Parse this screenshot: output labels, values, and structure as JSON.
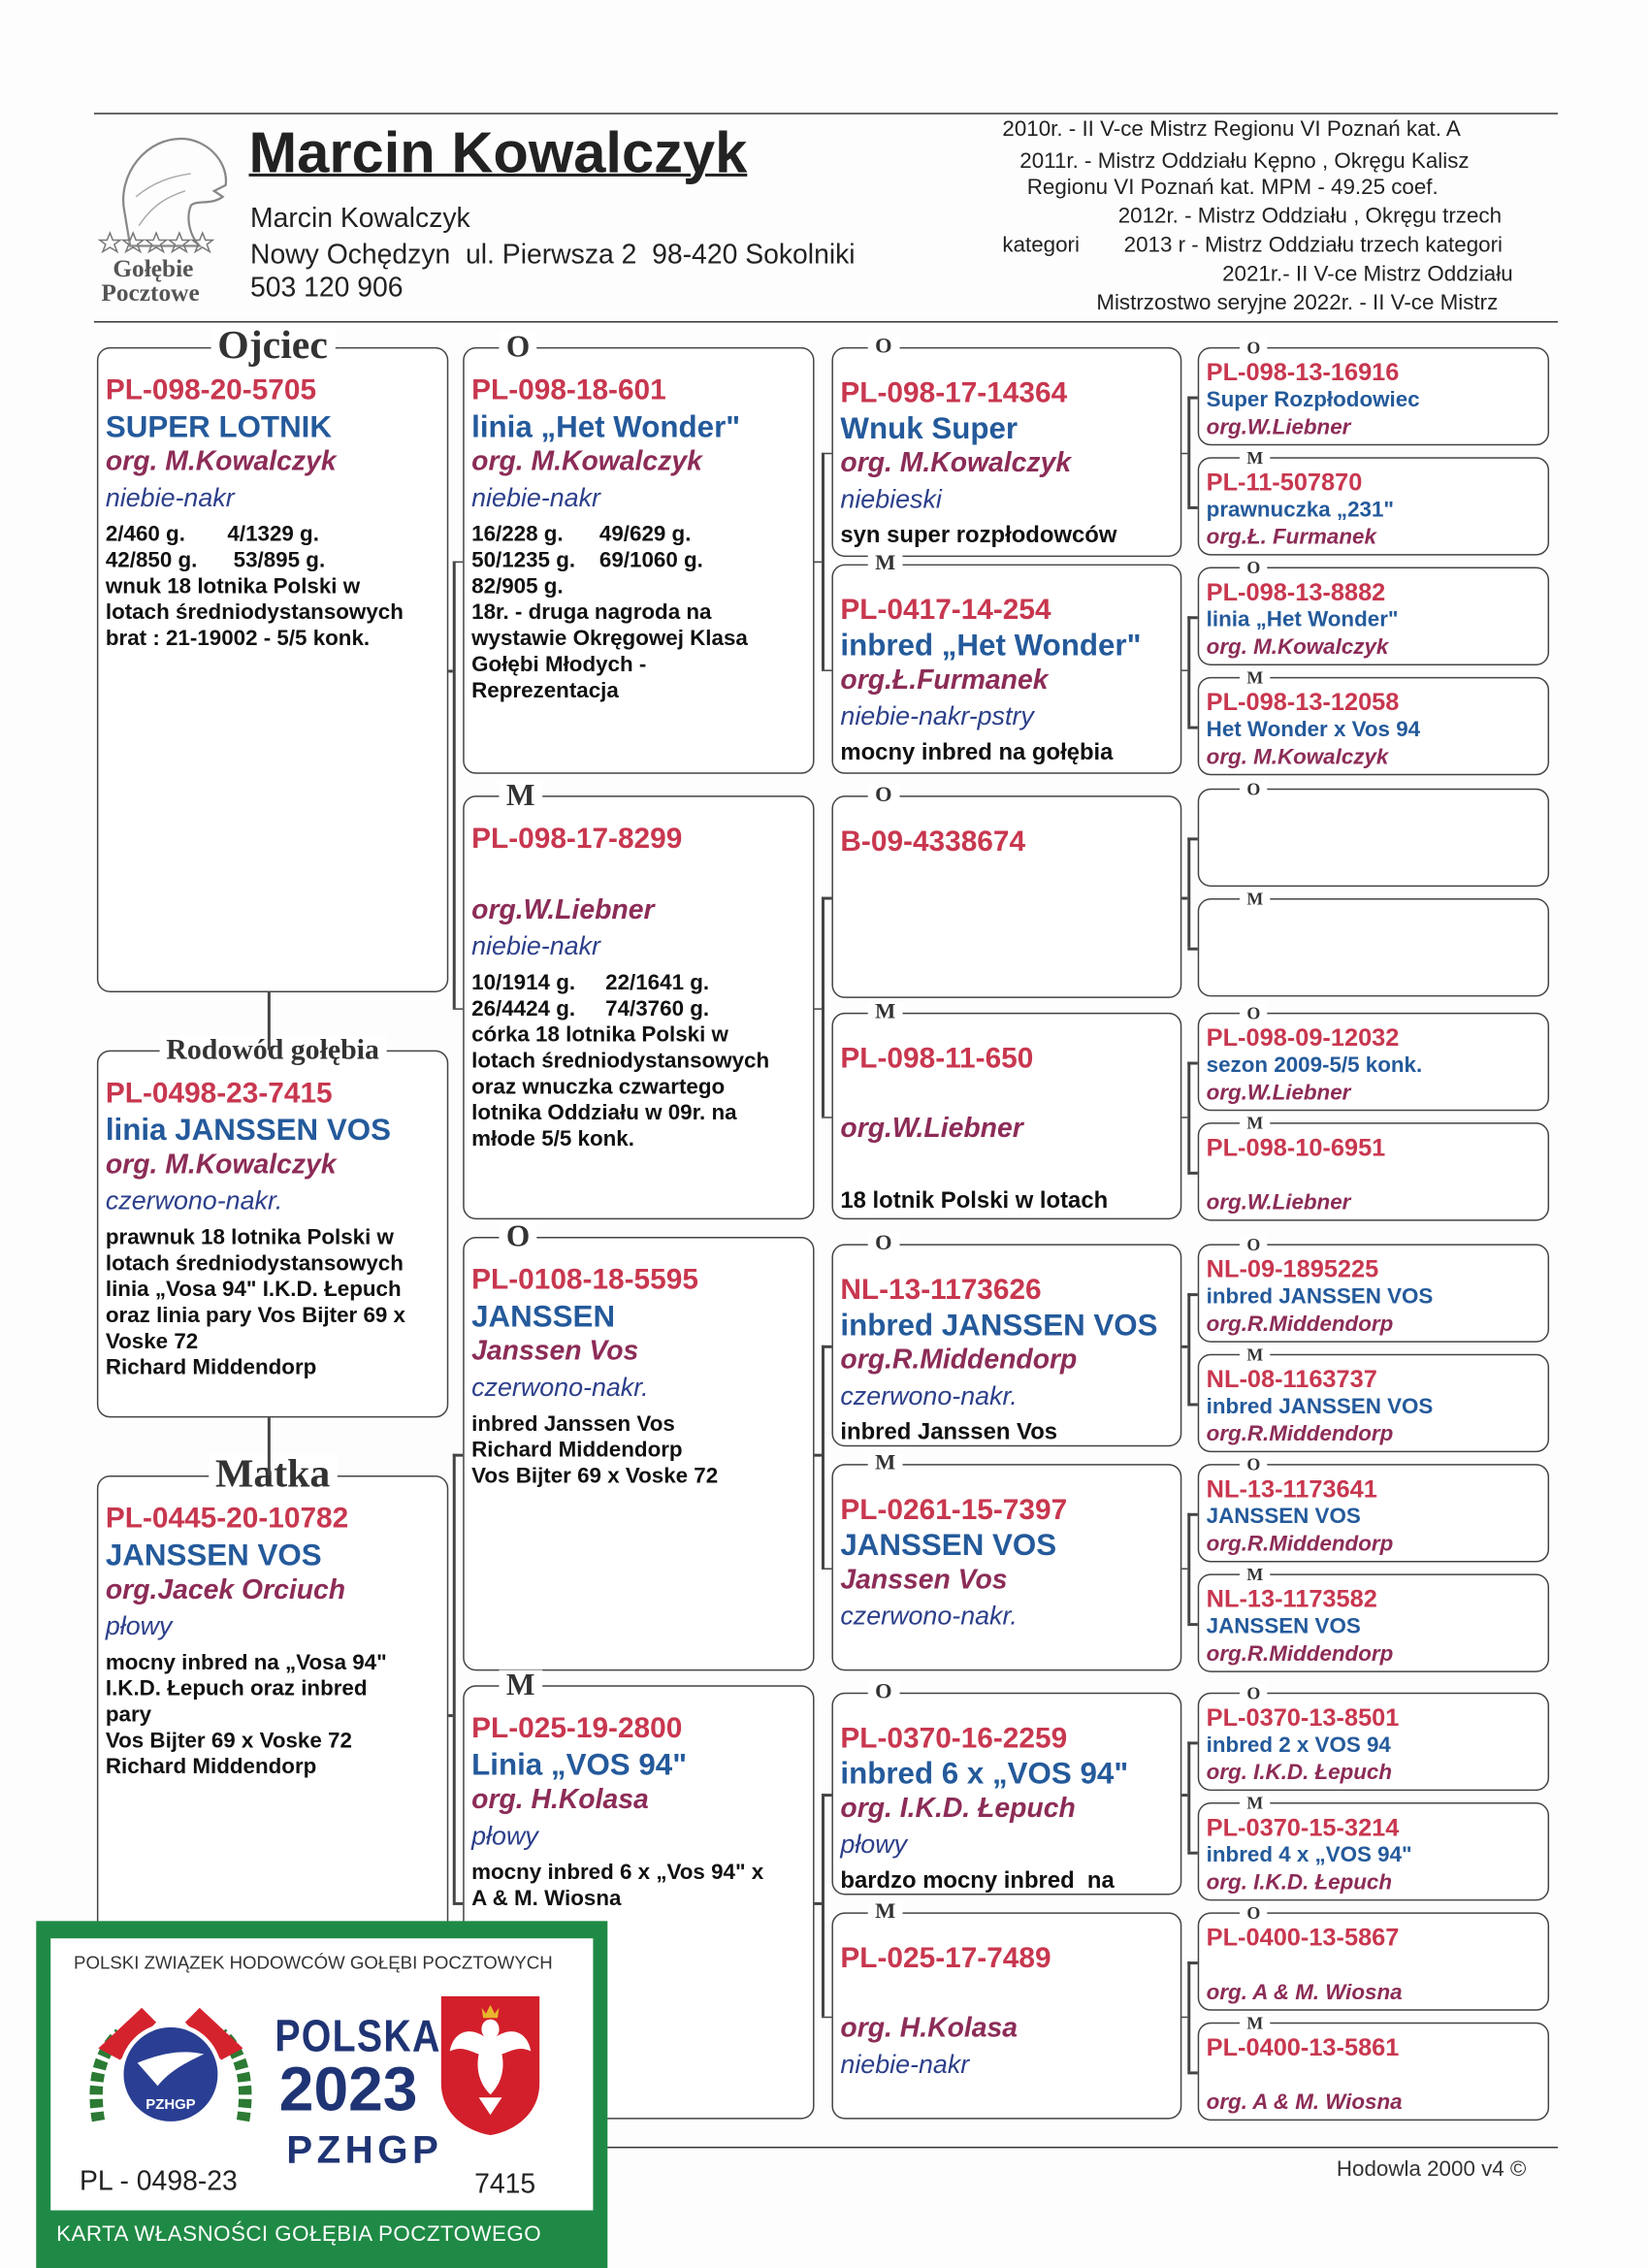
{
  "header": {
    "name": "Marcin Kowalczyk",
    "owner": "Marcin Kowalczyk",
    "address": "Nowy Ochędzyn  ul. Pierwsza 2  98-420 Sokolniki",
    "phone": "503 120 906",
    "logo": [
      "Gołębie",
      "Pocztowe"
    ],
    "achievements": [
      "2010r. - II V-ce Mistrz Regionu VI Poznań kat. A",
      "2011r. - Mistrz Oddziału Kępno , Okręgu Kalisz",
      "Regionu VI Poznań kat. MPM - 49.25 coef.",
      "2012r. - Mistrz Oddziału , Okręgu trzech",
      "kategori",
      "2013 r - Mistrz Oddziału trzech kategori",
      "2021r.- II V-ce Mistrz Oddziału",
      "Mistrzostwo seryjne 2022r. - II V-ce Mistrz"
    ]
  },
  "pedigree": {
    "generations": [
      [
        {
          "tag": "Ojciec",
          "ring": "PL-098-20-5705",
          "name": "SUPER LOTNIK",
          "owner": "org. M.Kowalczyk",
          "color": "niebie-nakr",
          "notes": [
            "2/460 g.       4/1329 g.",
            "42/850 g.      53/895 g.",
            "wnuk 18 lotnika Polski w",
            "lotach średniodystansowych",
            "brat : 21-19002 - 5/5 konk."
          ]
        },
        {
          "tag": "Rodowód gołębia",
          "ring": "PL-0498-23-7415",
          "name": "linia JANSSEN VOS",
          "owner": "org. M.Kowalczyk",
          "color": "czerwono-nakr.",
          "notes": [
            "prawnuk 18 lotnika Polski w",
            "lotach średniodystansowych",
            "linia „Vosa 94\" I.K.D. Łepuch",
            "oraz linia pary Vos Bijter 69 x",
            "Voske 72",
            "Richard Middendorp"
          ]
        },
        {
          "tag": "Matka",
          "ring": "PL-0445-20-10782",
          "name": "JANSSEN VOS",
          "owner": "org.Jacek Orciuch",
          "color": "płowy",
          "notes": [
            "mocny inbred na „Vosa 94\"",
            "I.K.D. Łepuch oraz inbred",
            "pary",
            "Vos Bijter 69 x Voske 72",
            "Richard Middendorp"
          ]
        }
      ],
      [
        {
          "tag": "O",
          "ring": "PL-098-18-601",
          "name": "linia „Het Wonder\"",
          "owner": "org. M.Kowalczyk",
          "color": "niebie-nakr",
          "notes": [
            "16/228 g.      49/629 g.",
            "50/1235 g.    69/1060 g.",
            "82/905 g.",
            "18r. - druga nagroda na",
            "wystawie Okręgowej Klasa",
            "Gołębi Młodych -",
            "Reprezentacja"
          ]
        },
        {
          "tag": "M",
          "ring": "PL-098-17-8299",
          "owner": "org.W.Liebner",
          "color": "niebie-nakr",
          "notes": [
            "10/1914 g.     22/1641 g.",
            "26/4424 g.     74/3760 g.",
            "córka 18 lotnika Polski w",
            "lotach średniodystansowych",
            "oraz wnuczka czwartego",
            "lotnika Oddziału w 09r. na",
            "młode 5/5 konk."
          ]
        },
        {
          "tag": "O",
          "ring": "PL-0108-18-5595",
          "name": "JANSSEN",
          "owner": "Janssen Vos",
          "color": "czerwono-nakr.",
          "notes": [
            "inbred Janssen Vos",
            "Richard Middendorp",
            "Vos Bijter 69 x Voske 72"
          ]
        },
        {
          "tag": "M",
          "ring": "PL-025-19-2800",
          "name": "Linia „VOS 94\"",
          "owner": "org. H.Kolasa",
          "color": "płowy",
          "notes": [
            "mocny inbred 6 x „Vos 94\" x",
            "A & M. Wiosna"
          ]
        }
      ],
      [
        {
          "tag": "O",
          "ring": "PL-098-17-14364",
          "name": "Wnuk Super",
          "owner": "org. M.Kowalczyk",
          "color": "niebieski",
          "notes": [
            "syn super rozpłodowców"
          ]
        },
        {
          "tag": "M",
          "ring": "PL-0417-14-254",
          "name": "inbred „Het Wonder\"",
          "owner": "org.Ł.Furmanek",
          "color": "niebie-nakr-pstry",
          "notes": [
            "mocny inbred na gołębia"
          ]
        },
        {
          "tag": "O",
          "ring": "B-09-4338674"
        },
        {
          "tag": "M",
          "ring": "PL-098-11-650",
          "owner": "org.W.Liebner",
          "notes": [
            "18 lotnik Polski w lotach"
          ]
        },
        {
          "tag": "O",
          "ring": "NL-13-1173626",
          "name": "inbred JANSSEN VOS",
          "owner": "org.R.Middendorp",
          "color": "czerwono-nakr.",
          "notes": [
            "inbred Janssen Vos"
          ]
        },
        {
          "tag": "M",
          "ring": "PL-0261-15-7397",
          "name": "JANSSEN VOS",
          "owner": "Janssen Vos",
          "color": "czerwono-nakr."
        },
        {
          "tag": "O",
          "ring": "PL-0370-16-2259",
          "name": "inbred 6 x „VOS 94\"",
          "owner": "org. I.K.D. Łepuch",
          "color": "płowy",
          "notes": [
            "bardzo mocny inbred  na"
          ]
        },
        {
          "tag": "M",
          "ring": "PL-025-17-7489",
          "owner": "org. H.Kolasa",
          "color": "niebie-nakr"
        }
      ],
      [
        {
          "tag": "O",
          "ring": "PL-098-13-16916",
          "name": "Super Rozpłodowiec",
          "owner": "org.W.Liebner"
        },
        {
          "tag": "M",
          "ring": "PL-11-507870",
          "name": "prawnuczka „231\"",
          "owner": "org.Ł. Furmanek"
        },
        {
          "tag": "O",
          "ring": "PL-098-13-8882",
          "name": "linia „Het Wonder\"",
          "owner": "org. M.Kowalczyk"
        },
        {
          "tag": "M",
          "ring": "PL-098-13-12058",
          "name": "Het Wonder x Vos 94",
          "owner": "org. M.Kowalczyk"
        },
        {
          "tag": "O"
        },
        {
          "tag": "M"
        },
        {
          "tag": "O",
          "ring": "PL-098-09-12032",
          "name": "sezon 2009-5/5 konk.",
          "owner": "org.W.Liebner"
        },
        {
          "tag": "M",
          "ring": "PL-098-10-6951",
          "owner": "org.W.Liebner"
        },
        {
          "tag": "O",
          "ring": "NL-09-1895225",
          "name": "inbred JANSSEN VOS",
          "owner": "org.R.Middendorp"
        },
        {
          "tag": "M",
          "ring": "NL-08-1163737",
          "name": "inbred JANSSEN VOS",
          "owner": "org.R.Middendorp"
        },
        {
          "tag": "O",
          "ring": "NL-13-1173641",
          "name": "JANSSEN VOS",
          "owner": "org.R.Middendorp"
        },
        {
          "tag": "M",
          "ring": "NL-13-1173582",
          "name": "JANSSEN VOS",
          "owner": "org.R.Middendorp"
        },
        {
          "tag": "O",
          "ring": "PL-0370-13-8501",
          "name": "inbred 2 x VOS 94",
          "owner": "org. I.K.D. Łepuch"
        },
        {
          "tag": "M",
          "ring": "PL-0370-15-3214",
          "name": "inbred 4 x „VOS 94\"",
          "owner": "org. I.K.D. Łepuch"
        },
        {
          "tag": "O",
          "ring": "PL-0400-13-5867",
          "owner": "org. A & M. Wiosna"
        },
        {
          "tag": "M",
          "ring": "PL-0400-13-5861",
          "owner": "org. A & M. Wiosna"
        }
      ]
    ]
  },
  "footer": "Hodowla 2000 v4 ©",
  "card": {
    "association": "POLSKI ZWIĄZEK HODOWCÓW GOŁĘBI POCZTOWYCH",
    "emblem": "PZHGP",
    "country": "POLSKA",
    "year": "2023",
    "org": "PZHGP",
    "ring": "PL - 0498-23",
    "number": "7415",
    "caption": "KARTA WŁASNOŚCI GOŁĘBIA POCZTOWEGO"
  }
}
